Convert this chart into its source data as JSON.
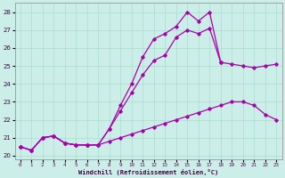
{
  "xlabel": "Windchill (Refroidissement éolien,°C)",
  "bg_color": "#cceee8",
  "line_color": "#aa00aa",
  "grid_color": "#aaddcc",
  "line1_x": [
    0,
    1,
    2,
    3,
    4,
    5,
    6,
    7,
    8,
    9,
    10,
    11,
    12,
    13,
    14,
    15,
    16,
    17,
    18,
    19,
    20,
    21,
    22,
    23
  ],
  "line1_y": [
    20.5,
    20.3,
    21.0,
    21.1,
    20.7,
    20.6,
    20.6,
    20.6,
    21.5,
    22.5,
    23.5,
    24.5,
    25.3,
    25.6,
    26.6,
    27.0,
    26.8,
    27.1,
    25.2,
    25.1,
    25.0,
    24.9,
    25.0,
    25.1
  ],
  "line2_x": [
    0,
    1,
    2,
    3,
    4,
    5,
    6,
    7,
    8,
    9,
    10,
    11,
    12,
    13,
    14,
    15,
    16,
    17,
    18
  ],
  "line2_y": [
    20.5,
    20.3,
    21.0,
    21.1,
    20.7,
    20.6,
    20.6,
    20.6,
    21.5,
    22.8,
    24.0,
    25.5,
    26.5,
    26.8,
    27.2,
    28.0,
    27.5,
    28.0,
    25.2
  ],
  "line3_x": [
    0,
    1,
    2,
    3,
    4,
    5,
    6,
    7,
    8,
    9,
    10,
    11,
    12,
    13,
    14,
    15,
    16,
    17,
    18,
    19,
    20,
    21,
    22,
    23
  ],
  "line3_y": [
    20.5,
    20.3,
    21.0,
    21.1,
    20.7,
    20.6,
    20.6,
    20.6,
    20.8,
    21.0,
    21.2,
    21.4,
    21.6,
    21.8,
    22.0,
    22.2,
    22.4,
    22.6,
    22.8,
    23.0,
    23.0,
    22.8,
    22.3,
    22.0
  ],
  "xlim": [
    -0.5,
    23.5
  ],
  "ylim": [
    19.8,
    28.5
  ],
  "xticks": [
    0,
    1,
    2,
    3,
    4,
    5,
    6,
    7,
    8,
    9,
    10,
    11,
    12,
    13,
    14,
    15,
    16,
    17,
    18,
    19,
    20,
    21,
    22,
    23
  ],
  "yticks": [
    20,
    21,
    22,
    23,
    24,
    25,
    26,
    27,
    28
  ]
}
